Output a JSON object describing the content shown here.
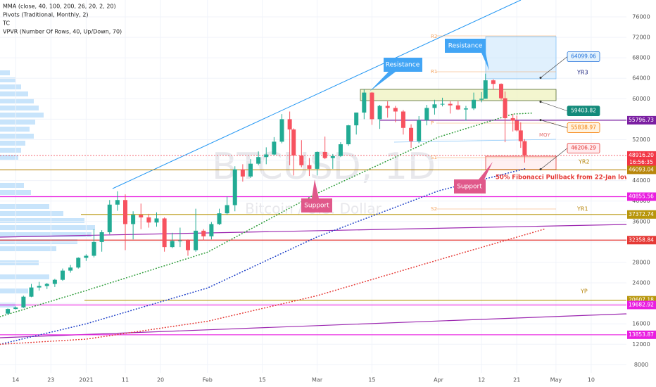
{
  "chart_data": {
    "type": "candlestick",
    "watermark": "BTCUSD, 1D",
    "watermark_subtitle": "Bitcoin / U.S. Dollar",
    "indicators": [
      "MMA (close, 40, 100, 200, 26, 20, 2, 20)",
      "Pivots (Traditional, Monthly, 2)",
      "TC",
      "VPVR (Number Of Rows, 40, Up/Down, 70)"
    ],
    "up_color": "#22ab94",
    "down_color": "#f7525f",
    "grid": true,
    "xlim": [
      "2020-12-10",
      "2021-05-19"
    ],
    "ylim": [
      6400,
      79300
    ],
    "xticks": [
      {
        "value": "2020-12-14",
        "label": "14"
      },
      {
        "value": "2020-12-23",
        "label": "23"
      },
      {
        "value": "2021-01-01",
        "label": "2021"
      },
      {
        "value": "2021-01-11",
        "label": "11"
      },
      {
        "value": "2021-01-20",
        "label": "20"
      },
      {
        "value": "2021-02-01",
        "label": "Feb"
      },
      {
        "value": "2021-02-15",
        "label": "15"
      },
      {
        "value": "2021-03-01",
        "label": "Mar"
      },
      {
        "value": "2021-03-15",
        "label": "15"
      },
      {
        "value": "2021-04-01",
        "label": "Apr"
      },
      {
        "value": "2021-04-12",
        "label": "12"
      },
      {
        "value": "2021-04-21",
        "label": "21"
      },
      {
        "value": "2021-05-01",
        "label": "May"
      },
      {
        "value": "2021-05-10",
        "label": "10"
      }
    ],
    "yticks": [
      8000,
      12000,
      16000,
      20000,
      24000,
      28000,
      32000,
      36000,
      40000,
      44000,
      48000,
      52000,
      56000,
      60000,
      64000,
      68000,
      72000,
      76000
    ],
    "x": [
      "2020-12-12",
      "2020-12-14",
      "2020-12-16",
      "2020-12-18",
      "2020-12-20",
      "2020-12-22",
      "2020-12-24",
      "2020-12-26",
      "2020-12-28",
      "2020-12-30",
      "2021-01-01",
      "2021-01-03",
      "2021-01-05",
      "2021-01-07",
      "2021-01-09",
      "2021-01-11",
      "2021-01-13",
      "2021-01-15",
      "2021-01-17",
      "2021-01-19",
      "2021-01-21",
      "2021-01-23",
      "2021-01-25",
      "2021-01-27",
      "2021-01-29",
      "2021-01-31",
      "2021-02-02",
      "2021-02-04",
      "2021-02-06",
      "2021-02-08",
      "2021-02-10",
      "2021-02-12",
      "2021-02-14",
      "2021-02-16",
      "2021-02-18",
      "2021-02-20",
      "2021-02-22",
      "2021-02-23",
      "2021-02-25",
      "2021-02-27",
      "2021-03-01",
      "2021-03-03",
      "2021-03-05",
      "2021-03-07",
      "2021-03-09",
      "2021-03-11",
      "2021-03-13",
      "2021-03-15",
      "2021-03-17",
      "2021-03-19",
      "2021-03-21",
      "2021-03-23",
      "2021-03-25",
      "2021-03-27",
      "2021-03-29",
      "2021-03-31",
      "2021-04-02",
      "2021-04-04",
      "2021-04-06",
      "2021-04-08",
      "2021-04-10",
      "2021-04-12",
      "2021-04-13",
      "2021-04-15",
      "2021-04-17",
      "2021-04-18",
      "2021-04-20",
      "2021-04-21",
      "2021-04-22",
      "2021-04-23"
    ],
    "open": [
      18000,
      18900,
      19200,
      21300,
      23100,
      23400,
      23800,
      24600,
      26400,
      27000,
      28900,
      29300,
      32000,
      33900,
      39300,
      40200,
      35500,
      37300,
      36800,
      35800,
      36600,
      31000,
      32200,
      32300,
      30400,
      34200,
      33100,
      35500,
      37600,
      39200,
      46200,
      44800,
      47300,
      48600,
      49100,
      51600,
      56000,
      54000,
      48900,
      47000,
      46300,
      49600,
      48400,
      48800,
      51100,
      54800,
      57300,
      61200,
      56000,
      58600,
      58200,
      57500,
      54300,
      51700,
      55800,
      58200,
      58900,
      59000,
      58700,
      57900,
      58100,
      59800,
      60000,
      63600,
      62900,
      60100,
      56200,
      55700,
      53800,
      51700
    ],
    "high": [
      19000,
      19400,
      21500,
      23800,
      24200,
      24000,
      24800,
      26800,
      27500,
      29000,
      29600,
      34500,
      34300,
      40200,
      41900,
      41300,
      38000,
      39500,
      37500,
      37800,
      36800,
      33800,
      34800,
      32500,
      38500,
      34500,
      35900,
      38500,
      40900,
      46800,
      47200,
      48200,
      49700,
      50500,
      52500,
      57000,
      57500,
      54200,
      51900,
      48400,
      49700,
      52600,
      49200,
      51500,
      54900,
      57300,
      61800,
      61300,
      58800,
      59500,
      58600,
      57800,
      55000,
      56600,
      58800,
      59800,
      60200,
      59500,
      59500,
      58600,
      61200,
      61300,
      64900,
      63800,
      63000,
      61400,
      57000,
      56700,
      55400,
      52100
    ],
    "low": [
      17800,
      18800,
      19100,
      21200,
      22500,
      22800,
      23200,
      24400,
      26000,
      26800,
      28300,
      29000,
      30100,
      33500,
      38100,
      30400,
      32500,
      34500,
      34800,
      35000,
      30100,
      30800,
      31000,
      29300,
      30100,
      32300,
      32500,
      35300,
      37300,
      38000,
      43800,
      44500,
      47000,
      47200,
      48900,
      51300,
      47000,
      45000,
      46600,
      44900,
      45000,
      48200,
      46300,
      48600,
      50800,
      53000,
      56000,
      54900,
      54100,
      56300,
      55400,
      53000,
      50400,
      51300,
      54800,
      56900,
      58500,
      57100,
      57800,
      55700,
      57800,
      59300,
      60000,
      61800,
      59800,
      51500,
      53600,
      53600,
      50400,
      47500
    ],
    "close": [
      18900,
      19200,
      21300,
      23100,
      23400,
      23800,
      24600,
      26400,
      27000,
      28900,
      29300,
      32000,
      33900,
      39300,
      40200,
      35500,
      37300,
      36800,
      35800,
      36600,
      31000,
      32200,
      32300,
      30400,
      34200,
      33100,
      35500,
      37600,
      39200,
      46200,
      44800,
      47300,
      48600,
      49100,
      51600,
      56000,
      54000,
      48900,
      47000,
      46300,
      49600,
      48400,
      48800,
      51100,
      54800,
      57300,
      61200,
      56000,
      58600,
      58200,
      57500,
      54300,
      51700,
      55800,
      58200,
      58900,
      59000,
      58700,
      57900,
      58100,
      59800,
      60000,
      63600,
      62900,
      60100,
      56200,
      55700,
      53800,
      51700,
      48916.2
    ],
    "moving_averages": [
      {
        "color": "#2e9d3a",
        "x": [
          "2020-12-10",
          "2021-01-01",
          "2021-02-01",
          "2021-03-01",
          "2021-04-01",
          "2021-04-20",
          "2021-04-25"
        ],
        "values": [
          17400,
          22500,
          30000,
          41500,
          52500,
          57000,
          57200
        ]
      },
      {
        "color": "#1e40c8",
        "x": [
          "2020-12-10",
          "2021-01-01",
          "2021-02-01",
          "2021-03-01",
          "2021-04-01",
          "2021-04-23"
        ],
        "values": [
          12000,
          16000,
          23000,
          33000,
          42000,
          46300
        ]
      },
      {
        "color": "#e53935",
        "x": [
          "2020-12-10",
          "2021-01-01",
          "2021-02-01",
          "2021-03-01",
          "2021-04-01",
          "2021-04-28"
        ],
        "values": [
          12000,
          13000,
          16500,
          21500,
          28500,
          34500
        ]
      }
    ],
    "price_levels": [
      {
        "value": 55796.73,
        "color": "#7b1fa2"
      },
      {
        "value": 48916.2,
        "value_label": "48916.20",
        "color": "#f23645"
      },
      {
        "value": 46093.04,
        "color": "#b8860b"
      },
      {
        "value": 40855.56,
        "color": "#e91ee0"
      },
      {
        "value": 37372.74,
        "color": "#b8960b"
      },
      {
        "value": 32358.84,
        "color": "#e53935"
      },
      {
        "value": 20607.18,
        "color": "#b8960b"
      },
      {
        "value": 19682.92,
        "color": "#e91ee0"
      },
      {
        "value": 13853.87,
        "color": "#e91ee0"
      }
    ],
    "countdown": "16:56:35",
    "callouts": [
      {
        "value": 64099.06,
        "color": "#1e6fd9"
      },
      {
        "value": 59403.82,
        "color": "#138a7a"
      },
      {
        "value": 55838.97,
        "color": "#f57c00"
      },
      {
        "value": 46206.29,
        "color": "#e53935"
      }
    ],
    "level_names": [
      "YR3",
      "YR2",
      "YR1",
      "YP",
      "R2",
      "R1",
      "P",
      "S1",
      "S2",
      "MQY"
    ],
    "annotations": [
      "Resistance",
      "Resistance",
      "Support",
      "Support",
      "50% Fibonacci Pullback from 22-Jan low"
    ]
  }
}
